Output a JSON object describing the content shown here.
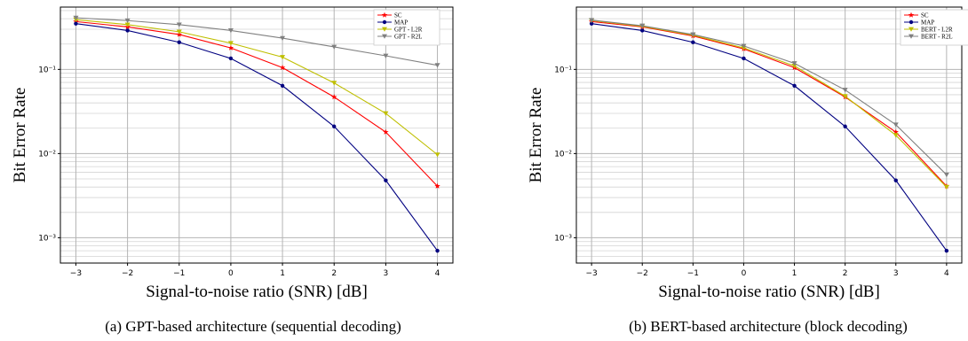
{
  "colors": {
    "SC": "#ff0000",
    "MAP": "#000080",
    "L2R": "#bfbf00",
    "R2L": "#808080"
  },
  "chart_data": [
    {
      "type": "line",
      "caption": "(a) GPT-based architecture (sequential decoding)",
      "xlabel": "Signal-to-noise ratio (SNR) [dB]",
      "ylabel": "Bit Error Rate",
      "yscale": "log",
      "xlim": [
        -3.3,
        4.3
      ],
      "ylim": [
        0.0005,
        0.55
      ],
      "x": [
        -3,
        -2,
        -1,
        0,
        1,
        2,
        3,
        4
      ],
      "xtick_labels": [
        "−3",
        "−2",
        "−1",
        "0",
        "1",
        "2",
        "3",
        "4"
      ],
      "ytick_labels": [
        "10⁻¹",
        "10⁻²",
        "10⁻³"
      ],
      "grid": true,
      "legend_position": "top-right",
      "series": [
        {
          "name": "SC",
          "color_key": "SC",
          "marker": "star",
          "values": [
            0.37,
            0.32,
            0.26,
            0.18,
            0.105,
            0.047,
            0.018,
            0.0041
          ]
        },
        {
          "name": "MAP",
          "color_key": "MAP",
          "marker": "dot",
          "values": [
            0.35,
            0.29,
            0.21,
            0.135,
            0.064,
            0.021,
            0.0048,
            0.0007
          ]
        },
        {
          "name": "GPT - L2R",
          "color_key": "L2R",
          "marker": "triangle-down",
          "values": [
            0.39,
            0.34,
            0.28,
            0.205,
            0.14,
            0.069,
            0.03,
            0.0097
          ]
        },
        {
          "name": "GPT - R2L",
          "color_key": "R2L",
          "marker": "triangle-down",
          "values": [
            0.41,
            0.38,
            0.34,
            0.29,
            0.235,
            0.185,
            0.145,
            0.112
          ]
        }
      ]
    },
    {
      "type": "line",
      "caption": "(b) BERT-based architecture (block decoding)",
      "xlabel": "Signal-to-noise ratio (SNR) [dB]",
      "ylabel": "Bit Error Rate",
      "yscale": "log",
      "xlim": [
        -3.3,
        4.3
      ],
      "ylim": [
        0.0005,
        0.55
      ],
      "x": [
        -3,
        -2,
        -1,
        0,
        1,
        2,
        3,
        4
      ],
      "xtick_labels": [
        "−3",
        "−2",
        "−1",
        "0",
        "1",
        "2",
        "3",
        "4"
      ],
      "ytick_labels": [
        "10⁻¹",
        "10⁻²",
        "10⁻³"
      ],
      "grid": true,
      "legend_position": "top-right",
      "series": [
        {
          "name": "SC",
          "color_key": "SC",
          "marker": "star",
          "values": [
            0.37,
            0.32,
            0.25,
            0.175,
            0.105,
            0.047,
            0.018,
            0.0041
          ]
        },
        {
          "name": "MAP",
          "color_key": "MAP",
          "marker": "dot",
          "values": [
            0.35,
            0.29,
            0.21,
            0.135,
            0.064,
            0.021,
            0.0048,
            0.0007
          ]
        },
        {
          "name": "BERT - L2R",
          "color_key": "L2R",
          "marker": "triangle-down",
          "values": [
            0.38,
            0.325,
            0.255,
            0.18,
            0.11,
            0.048,
            0.0165,
            0.004
          ]
        },
        {
          "name": "BERT - R2L",
          "color_key": "R2L",
          "marker": "triangle-down",
          "values": [
            0.385,
            0.33,
            0.26,
            0.19,
            0.118,
            0.057,
            0.022,
            0.0056
          ]
        }
      ]
    }
  ]
}
